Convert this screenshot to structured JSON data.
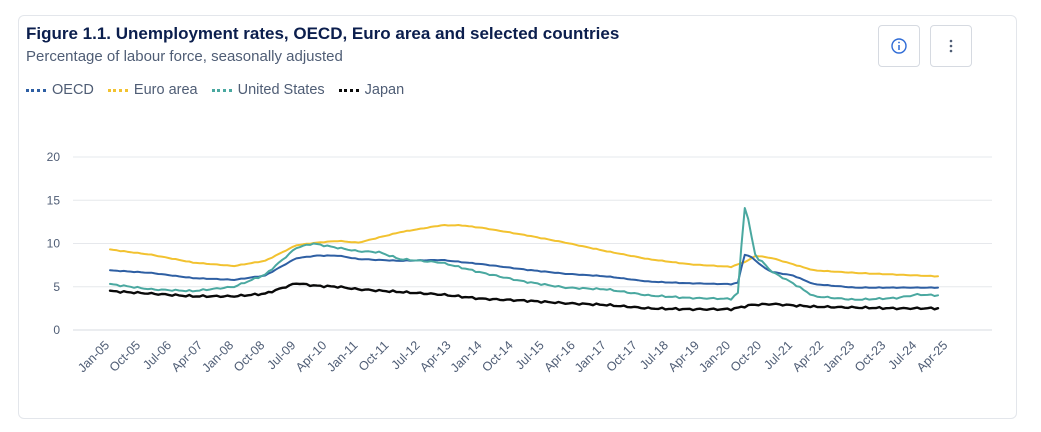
{
  "header": {
    "title": "Figure 1.1. Unemployment rates, OECD, Euro area and selected countries",
    "subtitle": "Percentage of labour force, seasonally adjusted"
  },
  "buttons": {
    "info_icon": "info-icon",
    "more_icon": "more-vertical-icon"
  },
  "colors": {
    "oecd": "#2e5fa3",
    "euro": "#f2c230",
    "us": "#4aa8a0",
    "japan": "#0a0a0a",
    "grid": "#e6e8ec"
  },
  "chart_data": {
    "type": "line",
    "title": "Figure 1.1. Unemployment rates, OECD, Euro area and selected countries",
    "subtitle": "Percentage of labour force, seasonally adjusted",
    "xlabel": "",
    "ylabel": "",
    "ylim": [
      0,
      20
    ],
    "yticks": [
      0,
      5,
      10,
      15,
      20
    ],
    "grid": true,
    "legend_position": "top-left",
    "x_range": [
      "Jan-05",
      "Apr-25"
    ],
    "x_ticks": [
      "Jan-05",
      "Oct-05",
      "Jul-06",
      "Apr-07",
      "Jan-08",
      "Oct-08",
      "Jul-09",
      "Apr-10",
      "Jan-11",
      "Oct-11",
      "Jul-12",
      "Apr-13",
      "Jan-14",
      "Oct-14",
      "Jul-15",
      "Apr-16",
      "Jan-17",
      "Oct-17",
      "Jul-18",
      "Apr-19",
      "Jan-20",
      "Oct-20",
      "Jul-21",
      "Apr-22",
      "Jan-23",
      "Oct-23",
      "Jul-24",
      "Apr-25"
    ],
    "series": [
      {
        "name": "OECD",
        "key": "oecd",
        "points": [
          [
            2005.0,
            6.9
          ],
          [
            2006.0,
            6.6
          ],
          [
            2007.0,
            6.0
          ],
          [
            2008.0,
            5.8
          ],
          [
            2008.75,
            6.3
          ],
          [
            2009.5,
            8.3
          ],
          [
            2010.0,
            8.6
          ],
          [
            2010.5,
            8.6
          ],
          [
            2011.0,
            8.2
          ],
          [
            2012.0,
            8.0
          ],
          [
            2013.0,
            8.1
          ],
          [
            2014.0,
            7.6
          ],
          [
            2015.0,
            7.0
          ],
          [
            2016.0,
            6.5
          ],
          [
            2017.0,
            6.2
          ],
          [
            2018.0,
            5.6
          ],
          [
            2019.0,
            5.4
          ],
          [
            2020.0,
            5.3
          ],
          [
            2020.2,
            5.5
          ],
          [
            2020.3,
            8.8
          ],
          [
            2020.5,
            8.4
          ],
          [
            2020.8,
            7.2
          ],
          [
            2021.0,
            6.7
          ],
          [
            2021.5,
            6.3
          ],
          [
            2022.0,
            5.3
          ],
          [
            2023.0,
            4.9
          ],
          [
            2024.0,
            4.9
          ],
          [
            2025.0,
            4.9
          ]
        ]
      },
      {
        "name": "Euro area",
        "key": "euro",
        "points": [
          [
            2005.0,
            9.3
          ],
          [
            2006.0,
            8.7
          ],
          [
            2007.0,
            7.8
          ],
          [
            2008.0,
            7.4
          ],
          [
            2008.75,
            8.0
          ],
          [
            2009.5,
            9.8
          ],
          [
            2010.0,
            10.1
          ],
          [
            2010.5,
            10.3
          ],
          [
            2011.0,
            10.1
          ],
          [
            2012.0,
            11.3
          ],
          [
            2013.0,
            12.1
          ],
          [
            2013.5,
            12.1
          ],
          [
            2014.0,
            11.8
          ],
          [
            2015.0,
            11.0
          ],
          [
            2016.0,
            10.1
          ],
          [
            2017.0,
            9.1
          ],
          [
            2018.0,
            8.2
          ],
          [
            2019.0,
            7.6
          ],
          [
            2020.0,
            7.3
          ],
          [
            2020.4,
            8.0
          ],
          [
            2020.6,
            8.6
          ],
          [
            2021.0,
            8.3
          ],
          [
            2021.5,
            7.6
          ],
          [
            2022.0,
            6.9
          ],
          [
            2023.0,
            6.6
          ],
          [
            2024.0,
            6.4
          ],
          [
            2025.0,
            6.2
          ]
        ]
      },
      {
        "name": "United States",
        "key": "us",
        "points": [
          [
            2005.0,
            5.3
          ],
          [
            2006.0,
            4.7
          ],
          [
            2007.0,
            4.5
          ],
          [
            2008.0,
            5.0
          ],
          [
            2008.75,
            6.4
          ],
          [
            2009.5,
            9.5
          ],
          [
            2009.9,
            10.0
          ],
          [
            2010.5,
            9.5
          ],
          [
            2011.0,
            9.1
          ],
          [
            2011.5,
            9.0
          ],
          [
            2012.0,
            8.2
          ],
          [
            2013.0,
            7.8
          ],
          [
            2014.0,
            6.6
          ],
          [
            2015.0,
            5.6
          ],
          [
            2016.0,
            4.9
          ],
          [
            2017.0,
            4.7
          ],
          [
            2018.0,
            4.0
          ],
          [
            2019.0,
            3.7
          ],
          [
            2020.0,
            3.6
          ],
          [
            2020.2,
            4.4
          ],
          [
            2020.3,
            14.7
          ],
          [
            2020.4,
            13.2
          ],
          [
            2020.5,
            10.7
          ],
          [
            2020.6,
            8.4
          ],
          [
            2020.75,
            7.9
          ],
          [
            2021.0,
            6.7
          ],
          [
            2021.5,
            5.4
          ],
          [
            2022.0,
            3.9
          ],
          [
            2023.0,
            3.5
          ],
          [
            2024.0,
            3.7
          ],
          [
            2024.5,
            4.1
          ],
          [
            2025.0,
            4.0
          ]
        ]
      },
      {
        "name": "Japan",
        "key": "japan",
        "points": [
          [
            2005.0,
            4.5
          ],
          [
            2006.0,
            4.2
          ],
          [
            2007.0,
            3.9
          ],
          [
            2008.0,
            3.9
          ],
          [
            2008.75,
            4.2
          ],
          [
            2009.5,
            5.4
          ],
          [
            2010.0,
            5.1
          ],
          [
            2010.5,
            5.0
          ],
          [
            2011.0,
            4.7
          ],
          [
            2012.0,
            4.4
          ],
          [
            2013.0,
            4.1
          ],
          [
            2014.0,
            3.6
          ],
          [
            2015.0,
            3.4
          ],
          [
            2016.0,
            3.1
          ],
          [
            2017.0,
            2.9
          ],
          [
            2018.0,
            2.5
          ],
          [
            2019.0,
            2.4
          ],
          [
            2020.0,
            2.4
          ],
          [
            2020.5,
            2.9
          ],
          [
            2021.0,
            3.0
          ],
          [
            2022.0,
            2.7
          ],
          [
            2023.0,
            2.6
          ],
          [
            2024.0,
            2.5
          ],
          [
            2025.0,
            2.5
          ]
        ]
      }
    ]
  }
}
